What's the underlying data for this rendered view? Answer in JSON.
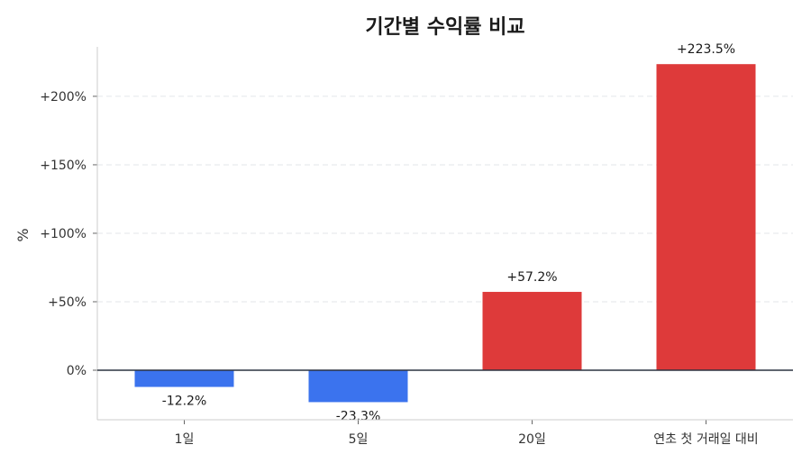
{
  "chart_data": {
    "type": "bar",
    "title": "기간별 수익률 비교",
    "ylabel": "%",
    "categories": [
      "1일",
      "5일",
      "20일",
      "연초 첫 거래일 대비"
    ],
    "values": [
      -12.2,
      -23.3,
      57.2,
      223.5
    ],
    "data_labels": [
      "-12.2%",
      "-23.3%",
      "+57.2%",
      "+223.5%"
    ],
    "ylim": [
      -35,
      237
    ],
    "yticks": [
      0,
      50,
      100,
      150,
      200
    ],
    "ytick_labels": [
      "0%",
      "+50%",
      "+100%",
      "+150%",
      "+200%"
    ],
    "grid": true,
    "colors": {
      "positive": "#de3a3a",
      "negative": "#3b73ee",
      "grid": "#e3e6ea",
      "zero_line": "#2b3340",
      "axis": "#cccccc"
    }
  }
}
